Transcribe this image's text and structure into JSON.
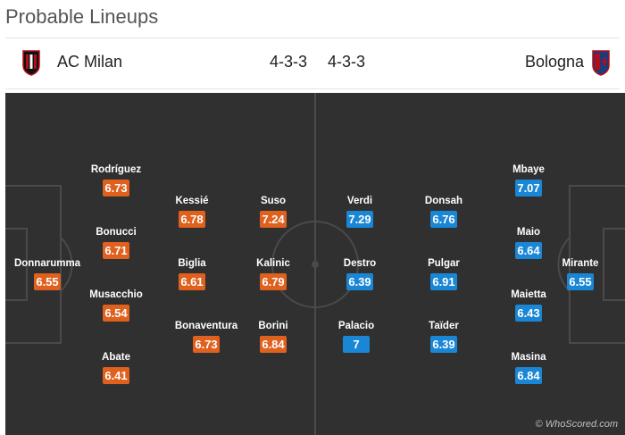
{
  "page": {
    "title": "Probable Lineups"
  },
  "match": {
    "home": {
      "name": "AC Milan",
      "formation": "4-3-3",
      "rating_color": "#e0601e",
      "crest_colors": [
        "#b40d1a",
        "#111111"
      ]
    },
    "away": {
      "name": "Bologna",
      "formation": "4-3-3",
      "rating_color": "#1a86d6",
      "crest_colors": [
        "#b40d1a",
        "#1d3a7a"
      ]
    }
  },
  "home_players": [
    {
      "name": "Rodríguez",
      "rating": "6.73"
    },
    {
      "name": "Bonucci",
      "rating": "6.71"
    },
    {
      "name": "Donnarumma",
      "rating": "6.55"
    },
    {
      "name": "Musacchio",
      "rating": "6.54"
    },
    {
      "name": "Abate",
      "rating": "6.41"
    },
    {
      "name": "Kessié",
      "rating": "6.78"
    },
    {
      "name": "Biglia",
      "rating": "6.61"
    },
    {
      "name": "Bonaventura",
      "rating": "6.73"
    },
    {
      "name": "Suso",
      "rating": "7.24"
    },
    {
      "name": "Kalinic",
      "rating": "6.79"
    },
    {
      "name": "Borini",
      "rating": "6.84"
    }
  ],
  "away_players": [
    {
      "name": "Verdi",
      "rating": "7.29"
    },
    {
      "name": "Destro",
      "rating": "6.39"
    },
    {
      "name": "Palacio",
      "rating": "7"
    },
    {
      "name": "Donsah",
      "rating": "6.76"
    },
    {
      "name": "Pulgar",
      "rating": "6.91"
    },
    {
      "name": "Taïder",
      "rating": "6.39"
    },
    {
      "name": "Mbaye",
      "rating": "7.07"
    },
    {
      "name": "Maio",
      "rating": "6.64"
    },
    {
      "name": "Maietta",
      "rating": "6.43"
    },
    {
      "name": "Masina",
      "rating": "6.84"
    },
    {
      "name": "Mirante",
      "rating": "6.55"
    }
  ],
  "footer": {
    "watermark": "© WhoScored.com"
  }
}
